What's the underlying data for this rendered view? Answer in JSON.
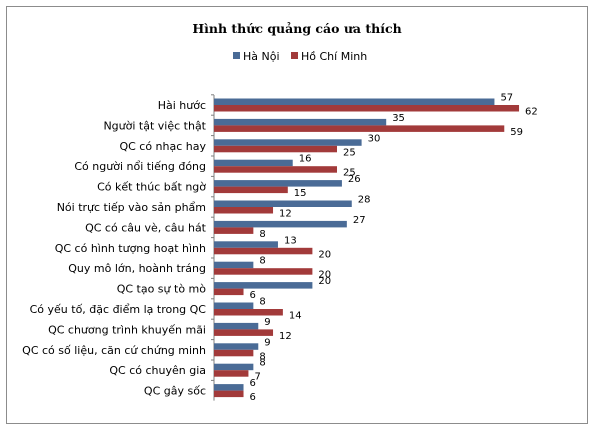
{
  "chart_data": {
    "type": "bar",
    "orientation": "horizontal",
    "title": "Hình  thức quảng cáo ưa thích",
    "legend_position": "top",
    "grid": false,
    "xlim": [
      0,
      70
    ],
    "categories": [
      "Hài hước",
      "Người tật việc thật",
      "QC có nhạc hay",
      "Có người nổi tiếng đóng",
      "Có kết thúc bất ngờ",
      "Nói trực tiếp vào sản phẩm",
      "QC có câu vè, câu hát",
      "QC có hình tượng hoạt hình",
      "Quy mô lớn, hoành tráng",
      "QC tạo sự tò mò",
      "Có yếu tố, đặc điểm lạ trong QC",
      "QC chương trình khuyến mãi",
      "QC có số liệu, căn cứ chứng minh",
      "QC có chuyên gia",
      "QC gây sốc"
    ],
    "series": [
      {
        "name": "Hà Nội",
        "color": "#4a6b96",
        "values": [
          57,
          35,
          30,
          16,
          26,
          28,
          27,
          13,
          8,
          20,
          8,
          9,
          9,
          8,
          6
        ]
      },
      {
        "name": "Hồ Chí Minh",
        "color": "#a23a3a",
        "values": [
          62,
          59,
          25,
          25,
          15,
          12,
          8,
          20,
          20,
          6,
          14,
          12,
          8,
          7,
          6
        ]
      }
    ]
  }
}
